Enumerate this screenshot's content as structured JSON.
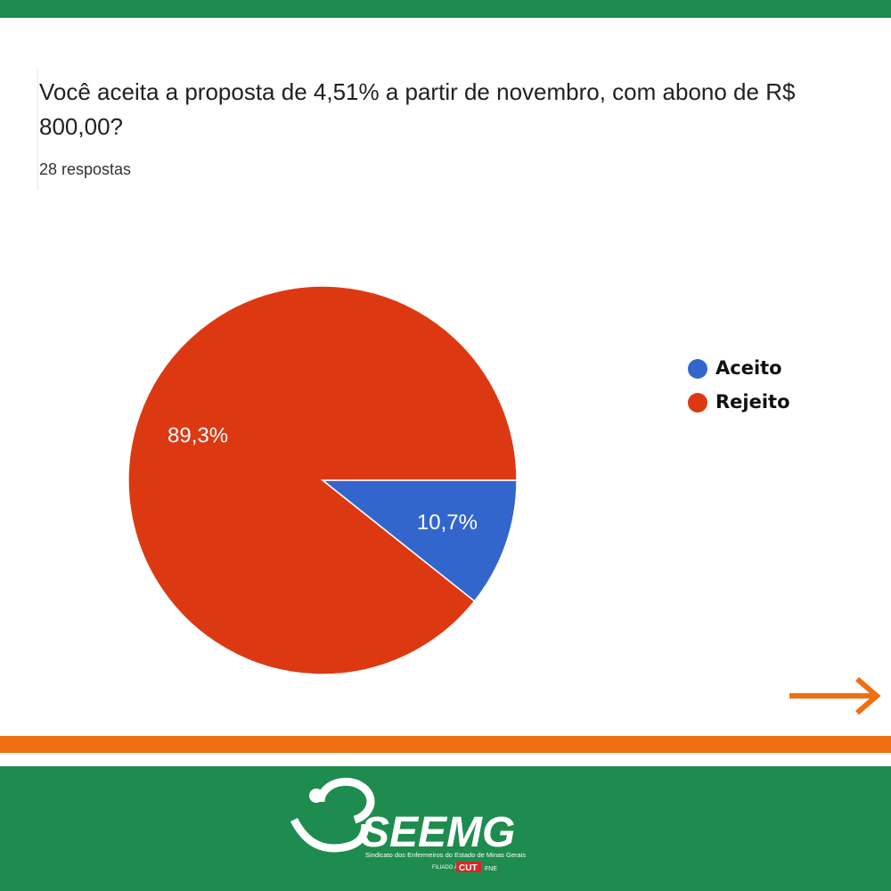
{
  "chart_data": {
    "type": "pie",
    "title": "Você aceita a proposta de 4,51% a partir de novembro, com abono de R$ 800,00?",
    "subtitle": "28 respostas",
    "categories": [
      "Aceito",
      "Rejeito"
    ],
    "values": [
      10.7,
      89.3
    ],
    "value_labels": [
      "10,7%",
      "89,3%"
    ],
    "colors": [
      "#3366cc",
      "#dc3912"
    ],
    "legend": "right"
  },
  "footer": {
    "logo": "SEEMG",
    "tagline": "Sindicato dos Enfermeiros do Estado de Minas Gerais",
    "affiliation": "FILIADO À",
    "cut": "CUT",
    "fne": "FNE"
  }
}
